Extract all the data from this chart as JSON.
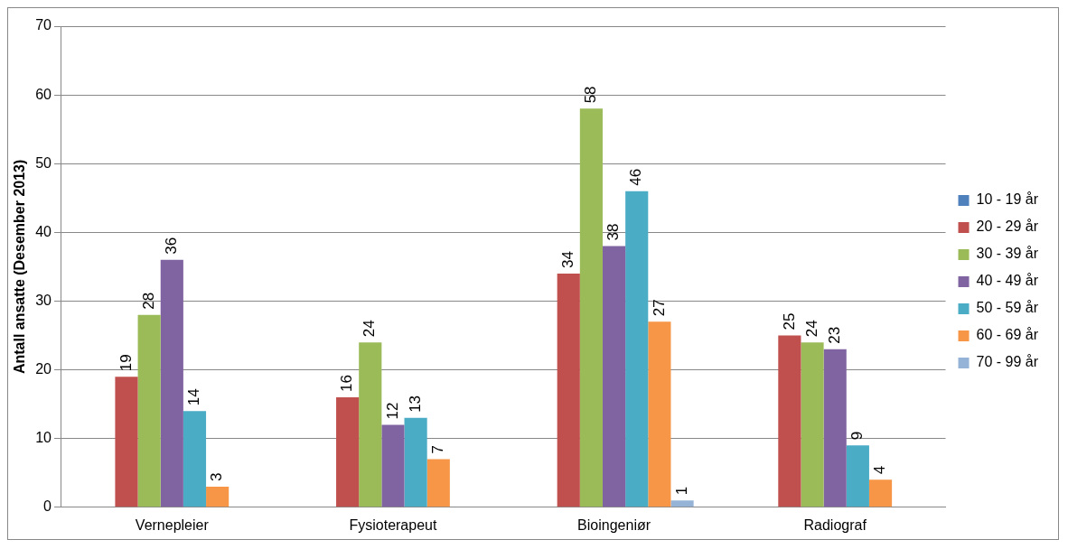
{
  "chart_data": {
    "type": "bar",
    "ylabel": "Antall ansatte (Desember 2013)",
    "categories": [
      "Vernepleier",
      "Fysioterapeut",
      "Bioingeniør",
      "Radiograf"
    ],
    "series": [
      {
        "name": "10 - 19 år",
        "color": "#4f81bd",
        "values": [
          null,
          null,
          null,
          null
        ]
      },
      {
        "name": "20 - 29 år",
        "color": "#c0504d",
        "values": [
          19,
          16,
          34,
          25
        ]
      },
      {
        "name": "30 - 39 år",
        "color": "#9bbb59",
        "values": [
          28,
          24,
          58,
          24
        ]
      },
      {
        "name": "40 - 49 år",
        "color": "#8064a2",
        "values": [
          36,
          12,
          38,
          23
        ]
      },
      {
        "name": "50 - 59 år",
        "color": "#4bacc6",
        "values": [
          14,
          13,
          46,
          9
        ]
      },
      {
        "name": "60 - 69 år",
        "color": "#f79646",
        "values": [
          3,
          7,
          27,
          4
        ]
      },
      {
        "name": "70 - 99 år",
        "color": "#95b3d7",
        "values": [
          null,
          null,
          1,
          null
        ]
      }
    ],
    "ylim": [
      0,
      70
    ],
    "yticks": [
      0,
      10,
      20,
      30,
      40,
      50,
      60,
      70
    ],
    "grid": "y",
    "legend": "right",
    "data_labels": true
  }
}
